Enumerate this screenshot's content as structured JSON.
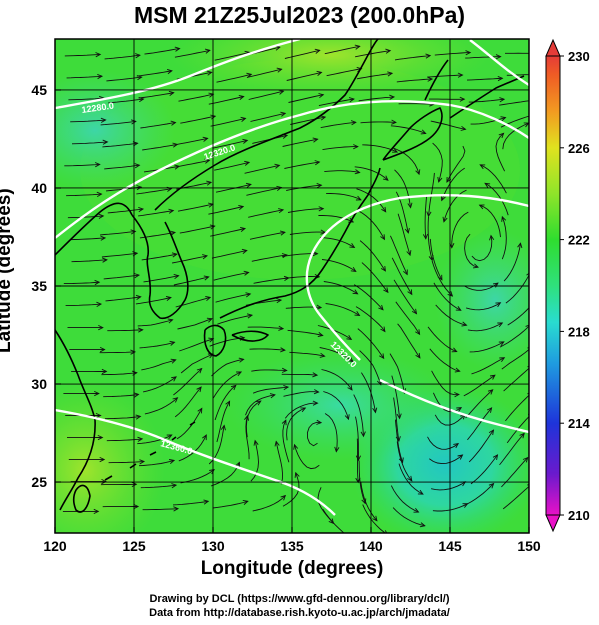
{
  "title": "MSM 21Z25Jul2023 (200.0hPa)",
  "axes": {
    "xlabel": "Longitude (degrees)",
    "ylabel": "Latitude  (degrees)",
    "x_ticks": [
      "120",
      "125",
      "130",
      "135",
      "140",
      "145",
      "150"
    ],
    "y_ticks": [
      "25",
      "30",
      "35",
      "40",
      "45"
    ]
  },
  "colorbar": {
    "ticks": [
      "210",
      "214",
      "218",
      "222",
      "226",
      "230"
    ],
    "colors": [
      "#e811c7",
      "#6a1acd",
      "#1e34d9",
      "#1f9bdf",
      "#29dcd0",
      "#2fe07c",
      "#2fdd2f",
      "#8fe42a",
      "#e0e21f",
      "#f29a21",
      "#ef5b25",
      "#e43c38"
    ]
  },
  "contour_labels": [
    "12280.0",
    "12320.0",
    "12360.0",
    "12320.0",
    "12360.0"
  ],
  "credits": [
    "Drawing by DCL (https://www.gfd-dennou.org/library/dcl/)",
    "Data from http://database.rish.kyoto-u.ac.jp/arch/jmadata/"
  ],
  "chart_data": {
    "type": "heatmap",
    "title": "MSM 21Z25Jul2023 (200.0hPa)",
    "xlabel": "Longitude (degrees)",
    "ylabel": "Latitude  (degrees)",
    "xlim": [
      120,
      150
    ],
    "ylim": [
      22.4,
      47.6
    ],
    "color_range": [
      210,
      230
    ],
    "field_description_estimates": {
      "dominant_value": 222,
      "low_spots": [
        {
          "lon": 144,
          "lat": 26.5,
          "value": 218
        },
        {
          "lon": 138,
          "lat": 28.5,
          "value": 219.5
        },
        {
          "lon": 121,
          "lat": 43,
          "value": 219.5
        }
      ],
      "high_spots": [
        {
          "lon": 122,
          "lat": 24,
          "value": 223.5
        },
        {
          "lon": 137,
          "lat": 46,
          "value": 223
        }
      ]
    },
    "contours": [
      {
        "level": 12280.0
      },
      {
        "level": 12320.0
      },
      {
        "level": 12360.0
      }
    ],
    "overlay": "wind streamlines with arrowheads",
    "grid": true
  }
}
